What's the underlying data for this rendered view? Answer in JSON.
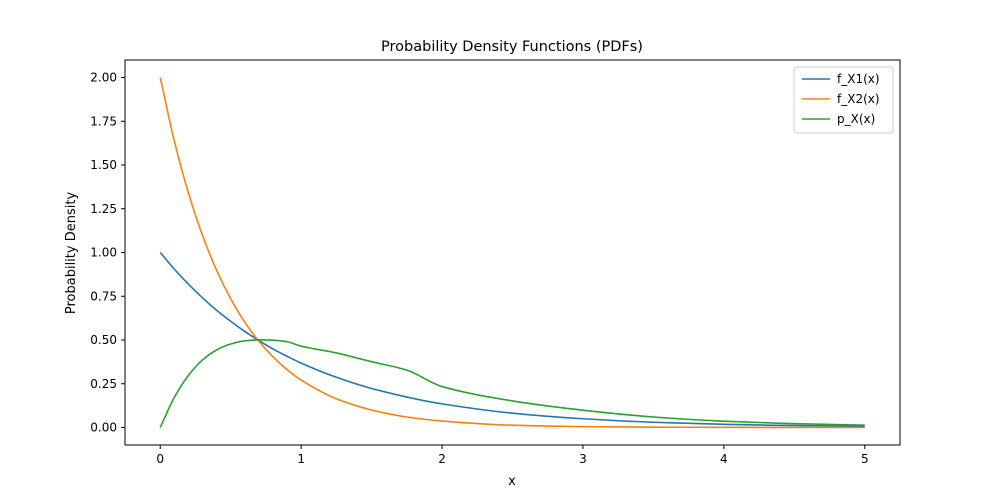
{
  "chart_data": {
    "type": "line",
    "title": "Probability Density Functions (PDFs)",
    "xlabel": "x",
    "ylabel": "Probability Density",
    "xlim": [
      -0.25,
      5.25
    ],
    "ylim": [
      -0.1,
      2.1
    ],
    "xticks": [
      0,
      1,
      2,
      3,
      4,
      5
    ],
    "xtick_labels": [
      "0",
      "1",
      "2",
      "3",
      "4",
      "5"
    ],
    "yticks": [
      0,
      0.25,
      0.5,
      0.75,
      1.0,
      1.25,
      1.5,
      1.75,
      2.0
    ],
    "ytick_labels": [
      "0.00",
      "0.25",
      "0.50",
      "0.75",
      "1.00",
      "1.25",
      "1.50",
      "1.75",
      "2.00"
    ],
    "grid": false,
    "legend_position": "top-right",
    "x": [
      0,
      0.1,
      0.2,
      0.3,
      0.4,
      0.5,
      0.6,
      0.7,
      0.8,
      0.9,
      1.0,
      1.25,
      1.5,
      1.75,
      2.0,
      2.5,
      3.0,
      3.5,
      4.0,
      4.5,
      5.0
    ],
    "series": [
      {
        "name": "f_X1(x)",
        "color": "#1f77b4",
        "values": [
          1.0,
          0.905,
          0.819,
          0.741,
          0.67,
          0.607,
          0.549,
          0.497,
          0.449,
          0.407,
          0.368,
          0.287,
          0.223,
          0.174,
          0.135,
          0.082,
          0.05,
          0.03,
          0.018,
          0.011,
          0.007
        ]
      },
      {
        "name": "f_X2(x)",
        "color": "#ff7f0e",
        "values": [
          2.0,
          1.637,
          1.341,
          1.098,
          0.899,
          0.736,
          0.602,
          0.493,
          0.404,
          0.331,
          0.271,
          0.164,
          0.1,
          0.06,
          0.037,
          0.013,
          0.005,
          0.002,
          0.001,
          0.0,
          0.0
        ]
      },
      {
        "name": "p_X(x)",
        "color": "#2ca02c",
        "values": [
          0.0,
          0.172,
          0.297,
          0.386,
          0.443,
          0.477,
          0.495,
          0.501,
          0.499,
          0.49,
          0.465,
          0.426,
          0.376,
          0.328,
          0.234,
          0.152,
          0.099,
          0.06,
          0.036,
          0.022,
          0.013
        ]
      }
    ]
  }
}
